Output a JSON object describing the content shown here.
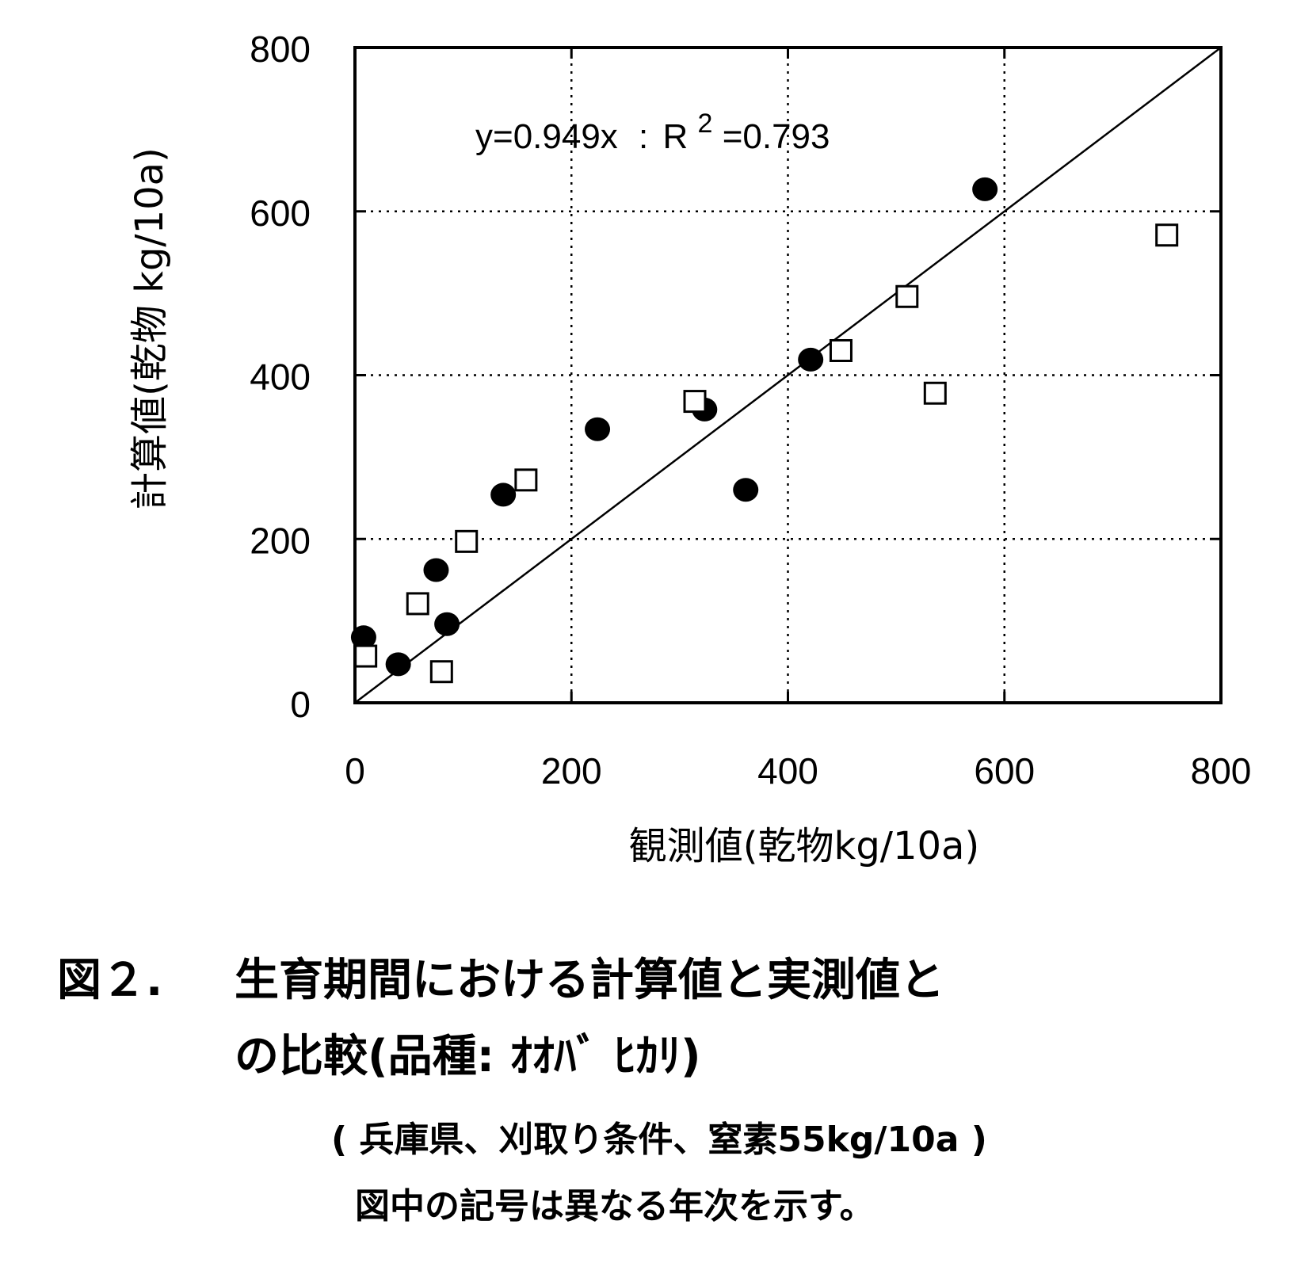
{
  "chart_data": {
    "type": "scatter",
    "xlabel": "観測値(乾物kg/10a)",
    "ylabel": "計算値(乾物 kg/10a)",
    "xlim": [
      0,
      800
    ],
    "ylim": [
      0,
      800
    ],
    "xticks": [
      0,
      200,
      400,
      600,
      800
    ],
    "yticks": [
      0,
      200,
      400,
      600,
      800
    ],
    "grid": "dotted",
    "annotation": {
      "equation": "y=0.949x",
      "separator": ":",
      "r2_label": "R",
      "r2_exponent": "2",
      "r2_value": "=0.793"
    },
    "fit_line": {
      "slope": 1,
      "x_range": [
        0,
        800
      ]
    },
    "series": [
      {
        "marker": "filled-circle",
        "points": [
          [
            8,
            80
          ],
          [
            40,
            47
          ],
          [
            75,
            162
          ],
          [
            85,
            96
          ],
          [
            137,
            254
          ],
          [
            224,
            334
          ],
          [
            323,
            358
          ],
          [
            361,
            260
          ],
          [
            421,
            419
          ],
          [
            582,
            627
          ]
        ]
      },
      {
        "marker": "open-square",
        "points": [
          [
            10,
            57
          ],
          [
            58,
            121
          ],
          [
            80,
            38
          ],
          [
            103,
            197
          ],
          [
            158,
            272
          ],
          [
            314,
            368
          ],
          [
            449,
            430
          ],
          [
            510,
            496
          ],
          [
            536,
            378
          ],
          [
            750,
            571
          ]
        ]
      }
    ]
  },
  "caption": {
    "figure_label": "図２.",
    "title_line1": "生育期間における計算値と実測値と",
    "title_line2": "の比較(品種: ｵｵﾊﾞ ﾋｶﾘ)",
    "note_line1": "( 兵庫県、刈取り条件、窒素55kg/10a )",
    "note_line2": "図中の記号は異なる年次を示す。"
  }
}
